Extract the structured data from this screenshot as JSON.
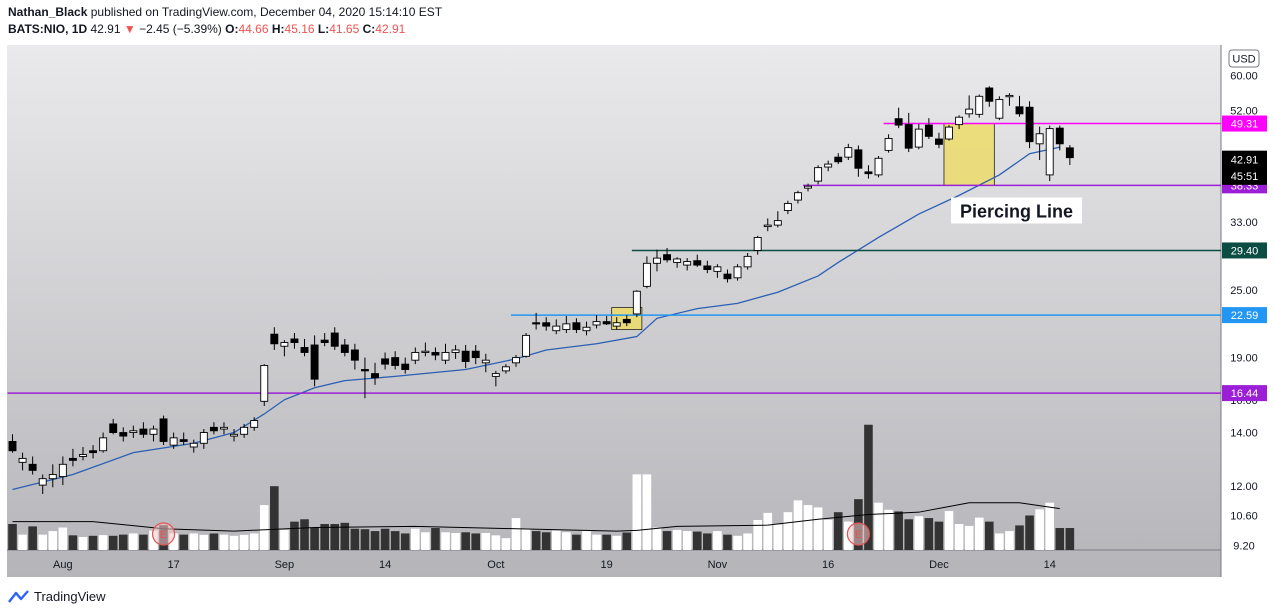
{
  "header": {
    "author": "Nathan_Black",
    "published_text": "published on TradingView.com, December 04, 2020 15:14:10 EST",
    "symbol": "BATS:NIO, 1D",
    "last": "42.91",
    "change_arrow": "▼",
    "change": "−2.45 (−5.39%)",
    "o_label": "O:",
    "o_value": "44.66",
    "h_label": "H:",
    "h_value": "45.16",
    "l_label": "L:",
    "l_value": "41.65",
    "c_label": "C:",
    "c_value": "42.91"
  },
  "footer": {
    "brand": "TradingView"
  },
  "colors": {
    "bg_top": "#eaeaec",
    "bg_bottom": "#b5b5b9",
    "sma": "#2b5fb4",
    "vol_ma": "#000000",
    "magenta": "#ff00ff",
    "purple": "#9b1fd6",
    "dark_green": "#0b4d43",
    "blue_level": "#2196f3",
    "highlight": "#ecdc6a"
  },
  "chart_data": {
    "type": "candlestick",
    "currency_badge": "USD",
    "y_scale": "log",
    "ylim": [
      8.5,
      66
    ],
    "y_ticks": [
      "60.00",
      "52.00",
      "43.00",
      "33.00",
      "29.00",
      "25.00",
      "22.59",
      "19.00",
      "16.00",
      "14.00",
      "12.00",
      "10.60",
      "9.20"
    ],
    "x_labels": [
      "Aug",
      "17",
      "Sep",
      "14",
      "Oct",
      "19",
      "Nov",
      "16",
      "Dec",
      "14"
    ],
    "x_label_bars": [
      5,
      16,
      27,
      37,
      48,
      59,
      70,
      81,
      92,
      103
    ],
    "ohlc": [
      [
        13.5,
        13.9,
        12.9,
        13.0
      ],
      [
        12.4,
        12.9,
        12.0,
        12.6
      ],
      [
        12.3,
        12.7,
        11.8,
        12.0
      ],
      [
        11.3,
        11.8,
        10.9,
        11.6
      ],
      [
        11.6,
        12.3,
        11.2,
        11.8
      ],
      [
        11.7,
        12.7,
        11.3,
        12.3
      ],
      [
        12.6,
        13.1,
        12.2,
        12.5
      ],
      [
        12.7,
        13.2,
        12.5,
        12.8
      ],
      [
        13.0,
        13.3,
        12.6,
        12.9
      ],
      [
        13.0,
        14.0,
        12.9,
        13.7
      ],
      [
        14.5,
        14.8,
        13.9,
        14.0
      ],
      [
        14.0,
        14.3,
        13.5,
        13.8
      ],
      [
        14.0,
        14.4,
        13.7,
        14.1
      ],
      [
        14.2,
        14.6,
        13.7,
        13.9
      ],
      [
        13.9,
        14.4,
        13.5,
        14.2
      ],
      [
        14.8,
        15.0,
        13.3,
        13.5
      ],
      [
        13.3,
        14.0,
        13.1,
        13.7
      ],
      [
        13.6,
        14.0,
        13.3,
        13.5
      ],
      [
        13.2,
        13.6,
        12.9,
        13.4
      ],
      [
        13.4,
        14.2,
        13.1,
        14.0
      ],
      [
        14.3,
        14.6,
        13.9,
        14.1
      ],
      [
        14.2,
        14.6,
        13.9,
        14.3
      ],
      [
        13.8,
        14.2,
        13.5,
        13.9
      ],
      [
        13.9,
        14.5,
        13.7,
        14.3
      ],
      [
        14.3,
        14.9,
        14.1,
        14.7
      ],
      [
        15.9,
        18.5,
        15.6,
        18.4
      ],
      [
        20.9,
        21.5,
        19.6,
        20.1
      ],
      [
        19.9,
        20.4,
        19.1,
        20.2
      ],
      [
        20.5,
        21.0,
        19.7,
        20.2
      ],
      [
        19.8,
        20.5,
        19.1,
        19.4
      ],
      [
        20.0,
        20.8,
        16.9,
        17.4
      ],
      [
        20.4,
        21.0,
        19.9,
        20.2
      ],
      [
        21.0,
        21.5,
        19.6,
        19.9
      ],
      [
        20.0,
        20.5,
        19.1,
        19.4
      ],
      [
        19.6,
        20.1,
        18.1,
        18.8
      ],
      [
        18.1,
        19.0,
        16.1,
        18.0
      ],
      [
        17.8,
        18.6,
        17.0,
        17.5
      ],
      [
        18.9,
        19.4,
        18.1,
        18.5
      ],
      [
        19.0,
        19.5,
        18.1,
        18.4
      ],
      [
        18.5,
        19.0,
        17.8,
        18.1
      ],
      [
        18.8,
        19.8,
        18.5,
        19.4
      ],
      [
        19.4,
        20.2,
        19.1,
        19.5
      ],
      [
        19.4,
        19.8,
        18.8,
        19.2
      ],
      [
        18.8,
        20.1,
        18.5,
        19.4
      ],
      [
        19.4,
        20.0,
        18.9,
        19.6
      ],
      [
        19.5,
        20.0,
        18.2,
        18.7
      ],
      [
        19.5,
        20.0,
        18.5,
        19.0
      ],
      [
        18.6,
        19.3,
        17.9,
        18.8
      ],
      [
        17.6,
        18.0,
        16.9,
        17.8
      ],
      [
        18.0,
        18.5,
        17.8,
        18.3
      ],
      [
        18.6,
        19.2,
        18.3,
        19.0
      ],
      [
        19.1,
        21.0,
        19.0,
        20.8
      ],
      [
        21.9,
        22.8,
        21.3,
        21.8
      ],
      [
        21.9,
        22.4,
        21.2,
        21.6
      ],
      [
        21.2,
        22.2,
        20.9,
        21.6
      ],
      [
        21.3,
        22.5,
        21.0,
        21.8
      ],
      [
        21.9,
        22.3,
        21.0,
        21.3
      ],
      [
        21.2,
        22.0,
        20.8,
        21.5
      ],
      [
        21.7,
        22.6,
        21.4,
        22.0
      ],
      [
        22.0,
        22.5,
        21.7,
        21.8
      ],
      [
        21.6,
        22.4,
        21.3,
        21.9
      ],
      [
        22.2,
        22.6,
        21.6,
        21.9
      ],
      [
        22.7,
        25.0,
        22.4,
        24.9
      ],
      [
        25.4,
        28.7,
        25.2,
        27.9
      ],
      [
        27.9,
        29.5,
        27.0,
        28.5
      ],
      [
        28.9,
        29.7,
        28.0,
        28.3
      ],
      [
        28.0,
        28.6,
        27.4,
        28.4
      ],
      [
        27.7,
        28.5,
        27.1,
        28.1
      ],
      [
        28.2,
        28.9,
        27.5,
        27.7
      ],
      [
        27.6,
        28.2,
        26.8,
        27.2
      ],
      [
        27.0,
        27.8,
        26.3,
        27.5
      ],
      [
        26.7,
        27.2,
        25.8,
        26.2
      ],
      [
        26.3,
        27.8,
        26.0,
        27.5
      ],
      [
        27.5,
        29.1,
        27.2,
        28.7
      ],
      [
        29.4,
        31.2,
        28.9,
        31.0
      ],
      [
        32.4,
        33.5,
        31.8,
        32.6
      ],
      [
        32.6,
        34.5,
        32.3,
        33.2
      ],
      [
        34.6,
        36.0,
        34.1,
        35.6
      ],
      [
        36.1,
        37.5,
        35.6,
        37.2
      ],
      [
        37.9,
        38.6,
        37.4,
        38.2
      ],
      [
        39.0,
        41.6,
        38.5,
        41.2
      ],
      [
        41.3,
        42.4,
        40.6,
        41.8
      ],
      [
        43.0,
        43.7,
        41.8,
        42.2
      ],
      [
        43.0,
        45.4,
        42.5,
        44.7
      ],
      [
        44.3,
        45.1,
        39.7,
        41.1
      ],
      [
        40.5,
        41.6,
        39.4,
        40.2
      ],
      [
        40.0,
        43.2,
        39.6,
        42.8
      ],
      [
        44.2,
        47.2,
        43.8,
        46.4
      ],
      [
        50.3,
        52.6,
        48.4,
        49.0
      ],
      [
        49.1,
        51.5,
        43.9,
        44.6
      ],
      [
        44.8,
        49.2,
        44.4,
        48.2
      ],
      [
        49.0,
        50.4,
        46.3,
        46.8
      ],
      [
        46.3,
        47.5,
        44.6,
        45.3
      ],
      [
        46.3,
        49.0,
        46.0,
        48.6
      ],
      [
        49.1,
        51.0,
        48.2,
        50.6
      ],
      [
        51.3,
        55.3,
        50.5,
        52.3
      ],
      [
        51.2,
        55.5,
        50.5,
        55.1
      ],
      [
        57.0,
        57.4,
        52.8,
        54.0
      ],
      [
        50.4,
        55.1,
        50.0,
        54.4
      ],
      [
        55.0,
        55.8,
        53.0,
        55.3
      ],
      [
        52.8,
        55.2,
        50.7,
        51.3
      ],
      [
        52.7,
        54.0,
        44.6,
        45.8
      ],
      [
        45.4,
        48.7,
        42.5,
        47.3
      ],
      [
        40.0,
        48.9,
        39.0,
        48.3
      ],
      [
        48.4,
        48.9,
        44.2,
        45.4
      ],
      [
        44.66,
        45.16,
        41.65,
        42.91
      ]
    ],
    "sma": [
      [
        0,
        11.1
      ],
      [
        6,
        11.8
      ],
      [
        12,
        12.9
      ],
      [
        18,
        13.4
      ],
      [
        22,
        14.0
      ],
      [
        25,
        15.1
      ],
      [
        27,
        16.0
      ],
      [
        30,
        16.8
      ],
      [
        33,
        17.3
      ],
      [
        38,
        17.6
      ],
      [
        45,
        18.1
      ],
      [
        50,
        18.9
      ],
      [
        53,
        19.6
      ],
      [
        58,
        20.1
      ],
      [
        62,
        20.7
      ],
      [
        64,
        22.3
      ],
      [
        68,
        23.2
      ],
      [
        72,
        23.7
      ],
      [
        76,
        24.8
      ],
      [
        80,
        26.5
      ],
      [
        82,
        28.0
      ],
      [
        86,
        31.0
      ],
      [
        90,
        34.1
      ],
      [
        94,
        36.8
      ],
      [
        98,
        40.0
      ],
      [
        101,
        43.6
      ],
      [
        104,
        44.8
      ]
    ],
    "volume": [
      11,
      6.5,
      10,
      6.5,
      8,
      9.5,
      6.2,
      5.5,
      6,
      6.3,
      6,
      6.5,
      7,
      6.5,
      8.2,
      10.5,
      7,
      6.5,
      7,
      6.4,
      7,
      6.5,
      6,
      6.4,
      7,
      19,
      27,
      8.5,
      12,
      13,
      9.5,
      11,
      11,
      11.5,
      9,
      8.8,
      8,
      9,
      8,
      7,
      9,
      7.5,
      9.3,
      7.5,
      7.2,
      7.5,
      7,
      7.2,
      6.2,
      5,
      13.5,
      9,
      8,
      7.5,
      8.2,
      7.5,
      6.5,
      8,
      6.5,
      6.5,
      6,
      7.4,
      32,
      32,
      9.5,
      8,
      8.5,
      8,
      7.8,
      7,
      8,
      6.5,
      6,
      7,
      12.7,
      15.7,
      10.8,
      16,
      21,
      19,
      18,
      12.8,
      16,
      12,
      21.5,
      53,
      20,
      17,
      16.3,
      13,
      14.3,
      13.5,
      12,
      16.5,
      11,
      10.2,
      13.7,
      12,
      7,
      8,
      10.4,
      14.6,
      17.2,
      20,
      9.3,
      9.3
    ],
    "vol_ma": [
      [
        0,
        12
      ],
      [
        8,
        12
      ],
      [
        15,
        9
      ],
      [
        22,
        8
      ],
      [
        30,
        9.5
      ],
      [
        40,
        10
      ],
      [
        50,
        9
      ],
      [
        60,
        8
      ],
      [
        62,
        8.3
      ],
      [
        66,
        10
      ],
      [
        75,
        10.5
      ],
      [
        80,
        13
      ],
      [
        85,
        15
      ],
      [
        90,
        16
      ],
      [
        95,
        20
      ],
      [
        100,
        20
      ],
      [
        104,
        17.5
      ]
    ],
    "vol_ylim": [
      0,
      55
    ],
    "levels": [
      {
        "value": 49.31,
        "label": "49.31",
        "color": "#ff00ff",
        "from": 87,
        "label_bg": "#ff00ff"
      },
      {
        "value": 38.33,
        "label": "38.33",
        "color": "#9b1fd6",
        "from": 79,
        "label_bg": "#9b1fd6"
      },
      {
        "value": 29.4,
        "label": "29.40",
        "color": "#0b4d43",
        "from": 62,
        "label_bg": "#0b4d43"
      },
      {
        "value": 22.59,
        "label": "22.59",
        "color": "#2196f3",
        "from": 50,
        "label_bg": "#2196f3"
      },
      {
        "value": 16.44,
        "label": "16.44",
        "color": "#9b1fd6",
        "from": 0,
        "label_bg": "#9b1fd6"
      }
    ],
    "price_tags": [
      {
        "label": "42.91",
        "value": 42.91,
        "bg": "#000000"
      },
      {
        "label": "45:51",
        "value": 41.0,
        "bg": "#000000"
      }
    ],
    "highlights": [
      {
        "from_bar": 59.5,
        "to_bar": 62.5,
        "low": 21.3,
        "high": 23.3,
        "color": "#ecdc6a"
      },
      {
        "from_bar": 92.5,
        "to_bar": 97.5,
        "low": 38.3,
        "high": 49.3,
        "color": "#ecdc6a"
      }
    ],
    "annotation": {
      "text": "Piercing Line",
      "bar": 93.5,
      "value": 34.6
    },
    "event_markers": [
      {
        "bar": 15,
        "glyph": "E"
      },
      {
        "bar": 84,
        "glyph": "E"
      }
    ]
  }
}
